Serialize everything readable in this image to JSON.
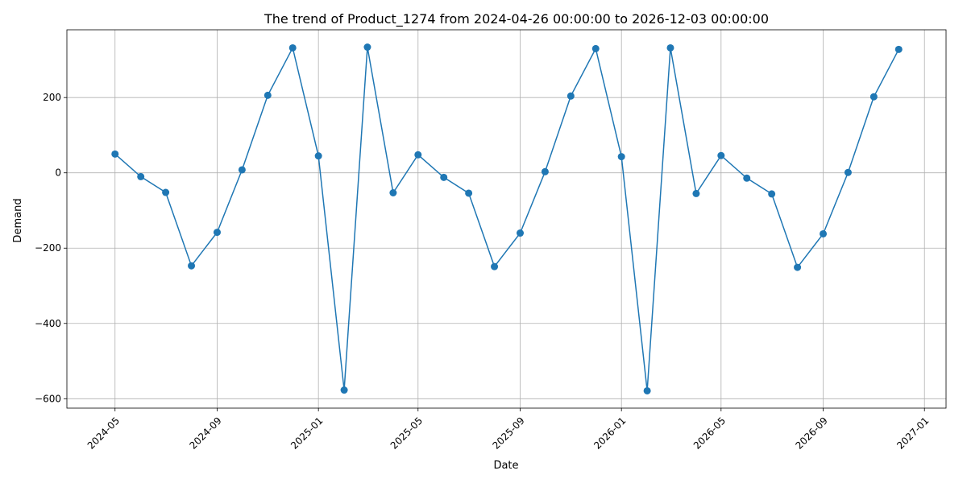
{
  "chart_data": {
    "type": "line",
    "title": "The trend of Product_1274 from 2024-04-26 00:00:00 to 2026-12-03 00:00:00",
    "xlabel": "Date",
    "ylabel": "Demand",
    "grid": true,
    "marker": "circle",
    "line_color": "#1f77b4",
    "x_ticks": [
      "2024-05",
      "2024-09",
      "2025-01",
      "2025-05",
      "2025-09",
      "2026-01",
      "2026-05",
      "2026-09",
      "2027-01"
    ],
    "y_ticks": [
      -600,
      -400,
      -200,
      0,
      200
    ],
    "xlim": [
      "2024-03-04",
      "2027-01-27"
    ],
    "ylim": [
      -625,
      380
    ],
    "series": [
      {
        "x": [
          "2024-05-01",
          "2024-06-01",
          "2024-07-01",
          "2024-08-01",
          "2024-09-01",
          "2024-10-01",
          "2024-11-01",
          "2024-12-01",
          "2025-01-01",
          "2025-02-01",
          "2025-03-01",
          "2025-04-01",
          "2025-05-01",
          "2025-06-01",
          "2025-07-01",
          "2025-08-01",
          "2025-09-01",
          "2025-10-01",
          "2025-11-01",
          "2025-12-01",
          "2026-01-01",
          "2026-02-01",
          "2026-03-01",
          "2026-04-01",
          "2026-05-01",
          "2026-06-01",
          "2026-07-01",
          "2026-08-01",
          "2026-09-01",
          "2026-10-01",
          "2026-11-01",
          "2026-12-01"
        ],
        "values": [
          50,
          -10,
          -52,
          -247,
          -158,
          8,
          206,
          332,
          45,
          -577,
          334,
          -53,
          48,
          -12,
          -54,
          -249,
          -160,
          3,
          204,
          330,
          43,
          -579,
          332,
          -55,
          46,
          -14,
          -56,
          -251,
          -162,
          1,
          202,
          328
        ]
      }
    ]
  }
}
